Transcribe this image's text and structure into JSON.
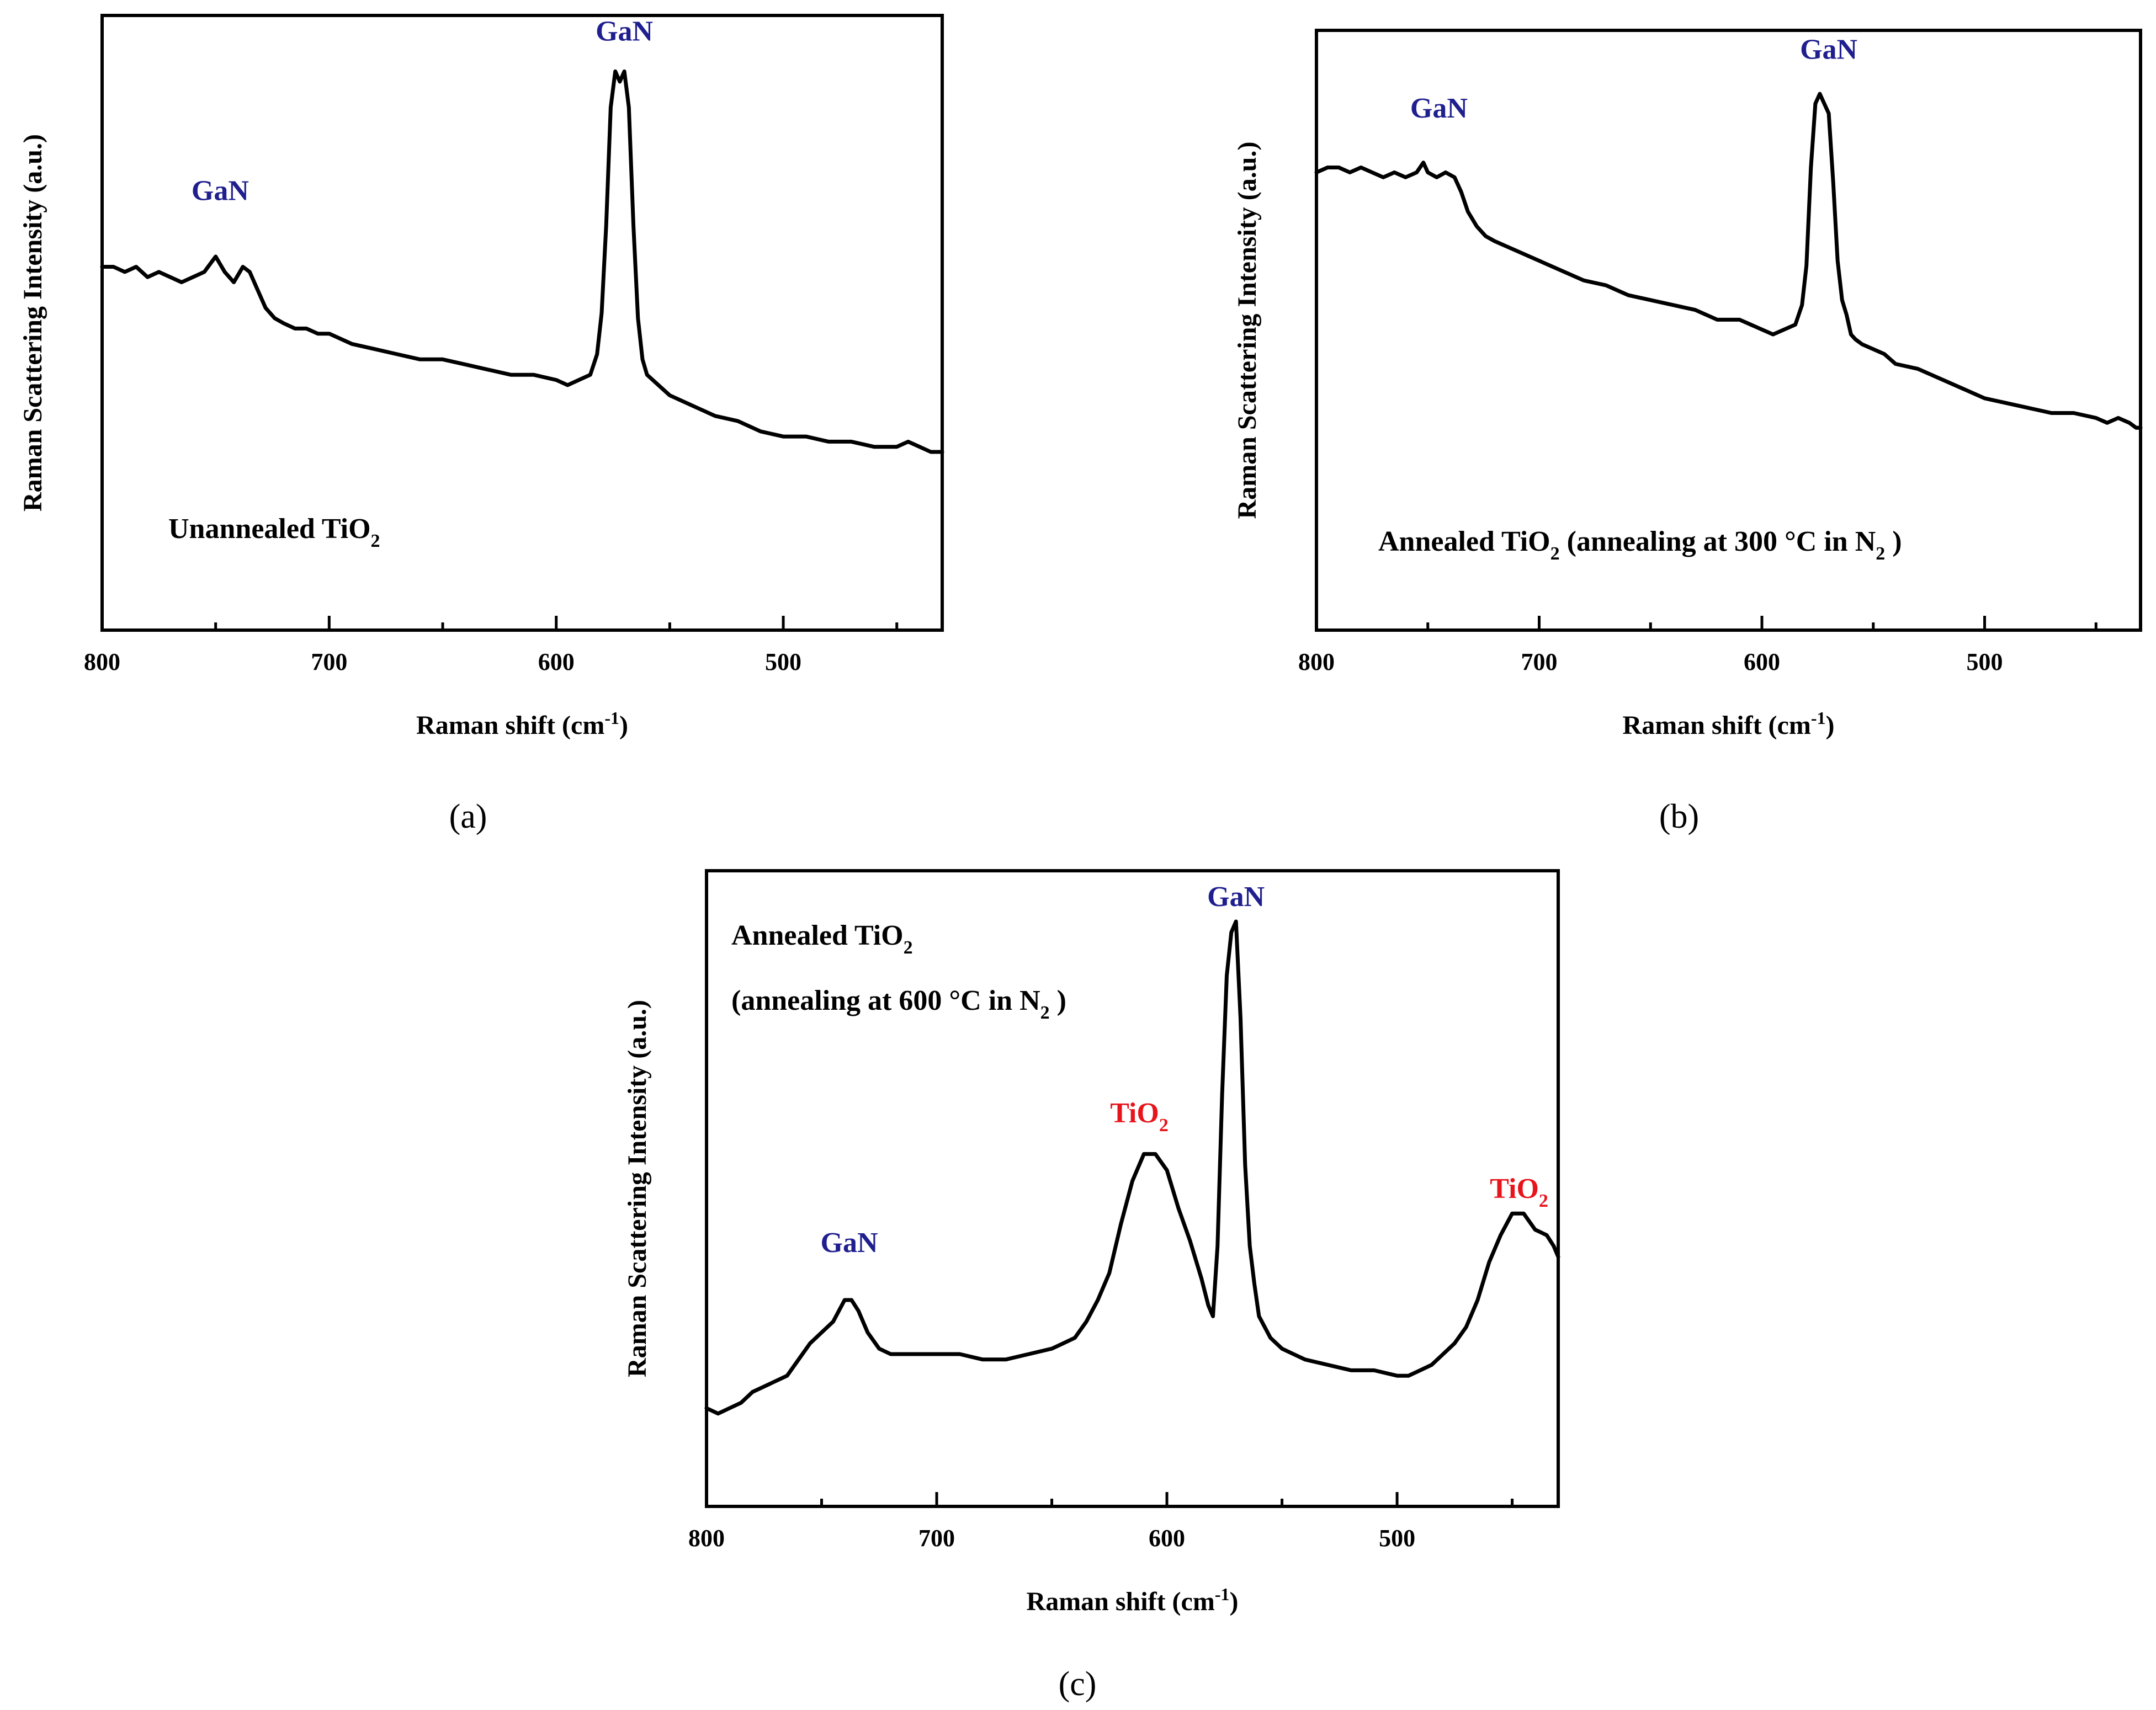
{
  "colors": {
    "gan": "#1f1f8f",
    "tio2": "#e8141b",
    "line": "#000000"
  },
  "chart_data": [
    {
      "type": "line",
      "panel": "(a)",
      "xlabel": "Raman shift (cm",
      "xlabel_sup": "-1",
      "xlabel_end": ")",
      "ylabel": "Raman Scattering Intensity (a.u.)",
      "xlim": [
        800,
        430
      ],
      "xticks": [
        800,
        700,
        600,
        500
      ],
      "ylim": [
        0,
        100
      ],
      "annotation": {
        "main": "Unannealed TiO",
        "sub": "2",
        "tail": ""
      },
      "peaks": [
        {
          "label": "GaN",
          "sub": "",
          "x": 748,
          "y": 74,
          "kind": "gan"
        },
        {
          "label": "GaN",
          "sub": "",
          "x": 570,
          "y": 105,
          "kind": "gan"
        }
      ],
      "series": [
        {
          "name": "Unannealed TiO2",
          "x": [
            800,
            795,
            790,
            785,
            780,
            775,
            770,
            765,
            760,
            755,
            750,
            746,
            742,
            738,
            735,
            732,
            728,
            724,
            720,
            715,
            710,
            705,
            700,
            690,
            680,
            670,
            660,
            650,
            640,
            630,
            620,
            610,
            600,
            595,
            590,
            585,
            582,
            580,
            578,
            576,
            574,
            572,
            570,
            568,
            566,
            564,
            562,
            560,
            555,
            550,
            545,
            540,
            530,
            520,
            510,
            500,
            490,
            480,
            470,
            460,
            450,
            445,
            440,
            435,
            432,
            430
          ],
          "y": [
            64,
            64,
            63,
            64,
            62,
            63,
            62,
            61,
            62,
            63,
            66,
            63,
            61,
            64,
            63,
            60,
            56,
            54,
            53,
            52,
            52,
            51,
            51,
            49,
            48,
            47,
            46,
            46,
            45,
            44,
            43,
            43,
            42,
            41,
            42,
            43,
            47,
            55,
            72,
            95,
            102,
            100,
            102,
            95,
            72,
            54,
            46,
            43,
            41,
            39,
            38,
            37,
            35,
            34,
            32,
            31,
            31,
            30,
            30,
            29,
            29,
            30,
            29,
            28,
            28,
            28
          ]
        }
      ]
    },
    {
      "type": "line",
      "panel": "(b)",
      "xlabel": "Raman shift (cm",
      "xlabel_sup": "-1",
      "xlabel_end": ")",
      "ylabel": "Raman Scattering Intensity (a.u.)",
      "xlim": [
        800,
        430
      ],
      "xticks": [
        800,
        700,
        600,
        500
      ],
      "ylim": [
        0,
        100
      ],
      "annotation": {
        "main": "Annealed TiO",
        "sub": "2",
        "tail": " (annealing at 300 °C in N",
        "tail_sub": "2",
        "tail_end": " )"
      },
      "peaks": [
        {
          "label": "GaN",
          "sub": "",
          "x": 745,
          "y": 92,
          "kind": "gan"
        },
        {
          "label": "GaN",
          "sub": "",
          "x": 570,
          "y": 104,
          "kind": "gan"
        }
      ],
      "series": [
        {
          "name": "Annealed TiO2 (300 C)",
          "x": [
            800,
            795,
            790,
            785,
            780,
            775,
            770,
            765,
            760,
            755,
            752,
            750,
            746,
            742,
            738,
            735,
            732,
            728,
            724,
            720,
            715,
            710,
            705,
            700,
            690,
            680,
            670,
            660,
            650,
            640,
            630,
            620,
            610,
            600,
            595,
            590,
            585,
            582,
            580,
            578,
            576,
            574,
            572,
            570,
            568,
            566,
            564,
            562,
            560,
            558,
            555,
            550,
            545,
            540,
            530,
            520,
            510,
            500,
            490,
            480,
            470,
            460,
            450,
            445,
            440,
            435,
            432,
            430
          ],
          "y": [
            84,
            85,
            85,
            84,
            85,
            84,
            83,
            84,
            83,
            84,
            86,
            84,
            83,
            84,
            83,
            80,
            76,
            73,
            71,
            70,
            69,
            68,
            67,
            66,
            64,
            62,
            61,
            59,
            58,
            57,
            56,
            54,
            54,
            52,
            51,
            52,
            53,
            57,
            65,
            85,
            98,
            100,
            98,
            96,
            82,
            66,
            58,
            55,
            51,
            50,
            49,
            48,
            47,
            45,
            44,
            42,
            40,
            38,
            37,
            36,
            35,
            35,
            34,
            33,
            34,
            33,
            32,
            32
          ]
        }
      ]
    },
    {
      "type": "line",
      "panel": "(c)",
      "xlabel": "Raman shift (cm",
      "xlabel_sup": "-1",
      "xlabel_end": ")",
      "ylabel": "Raman Scattering Intensity (a.u.)",
      "xlim": [
        800,
        430
      ],
      "xticks": [
        800,
        700,
        600,
        500
      ],
      "ylim": [
        0,
        100
      ],
      "annotation": {
        "main": "Annealed TiO",
        "sub": "2",
        "line2": "(annealing at 600 °C in N",
        "line2_sub": "2",
        "line2_end": " )"
      },
      "peaks": [
        {
          "label": "GaN",
          "sub": "",
          "x": 738,
          "y": 36,
          "kind": "gan"
        },
        {
          "label": "TiO",
          "sub": "2",
          "x": 612,
          "y": 60,
          "kind": "tio2"
        },
        {
          "label": "GaN",
          "sub": "",
          "x": 570,
          "y": 100,
          "kind": "gan"
        },
        {
          "label": "TiO",
          "sub": "2",
          "x": 447,
          "y": 46,
          "kind": "tio2"
        }
      ],
      "series": [
        {
          "name": "Annealed TiO2 (600 C)",
          "x": [
            800,
            795,
            790,
            785,
            780,
            775,
            770,
            765,
            760,
            755,
            750,
            745,
            740,
            737,
            734,
            730,
            725,
            720,
            715,
            710,
            700,
            690,
            680,
            670,
            660,
            650,
            645,
            640,
            635,
            630,
            625,
            620,
            615,
            610,
            605,
            600,
            595,
            590,
            585,
            582,
            580,
            578,
            576,
            574,
            572,
            570,
            568,
            566,
            564,
            562,
            560,
            555,
            550,
            545,
            540,
            530,
            520,
            510,
            500,
            495,
            490,
            485,
            480,
            475,
            470,
            465,
            460,
            455,
            450,
            445,
            440,
            435,
            432,
            430
          ],
          "y": [
            10,
            9,
            10,
            11,
            13,
            14,
            15,
            16,
            19,
            22,
            24,
            26,
            30,
            30,
            28,
            24,
            21,
            20,
            20,
            20,
            20,
            20,
            19,
            19,
            20,
            21,
            22,
            23,
            26,
            30,
            35,
            44,
            52,
            57,
            57,
            54,
            47,
            41,
            34,
            29,
            27,
            40,
            68,
            90,
            98,
            100,
            82,
            55,
            40,
            33,
            27,
            23,
            21,
            20,
            19,
            18,
            17,
            17,
            16,
            16,
            17,
            18,
            20,
            22,
            25,
            30,
            37,
            42,
            46,
            46,
            43,
            42,
            40,
            38
          ]
        }
      ]
    }
  ]
}
